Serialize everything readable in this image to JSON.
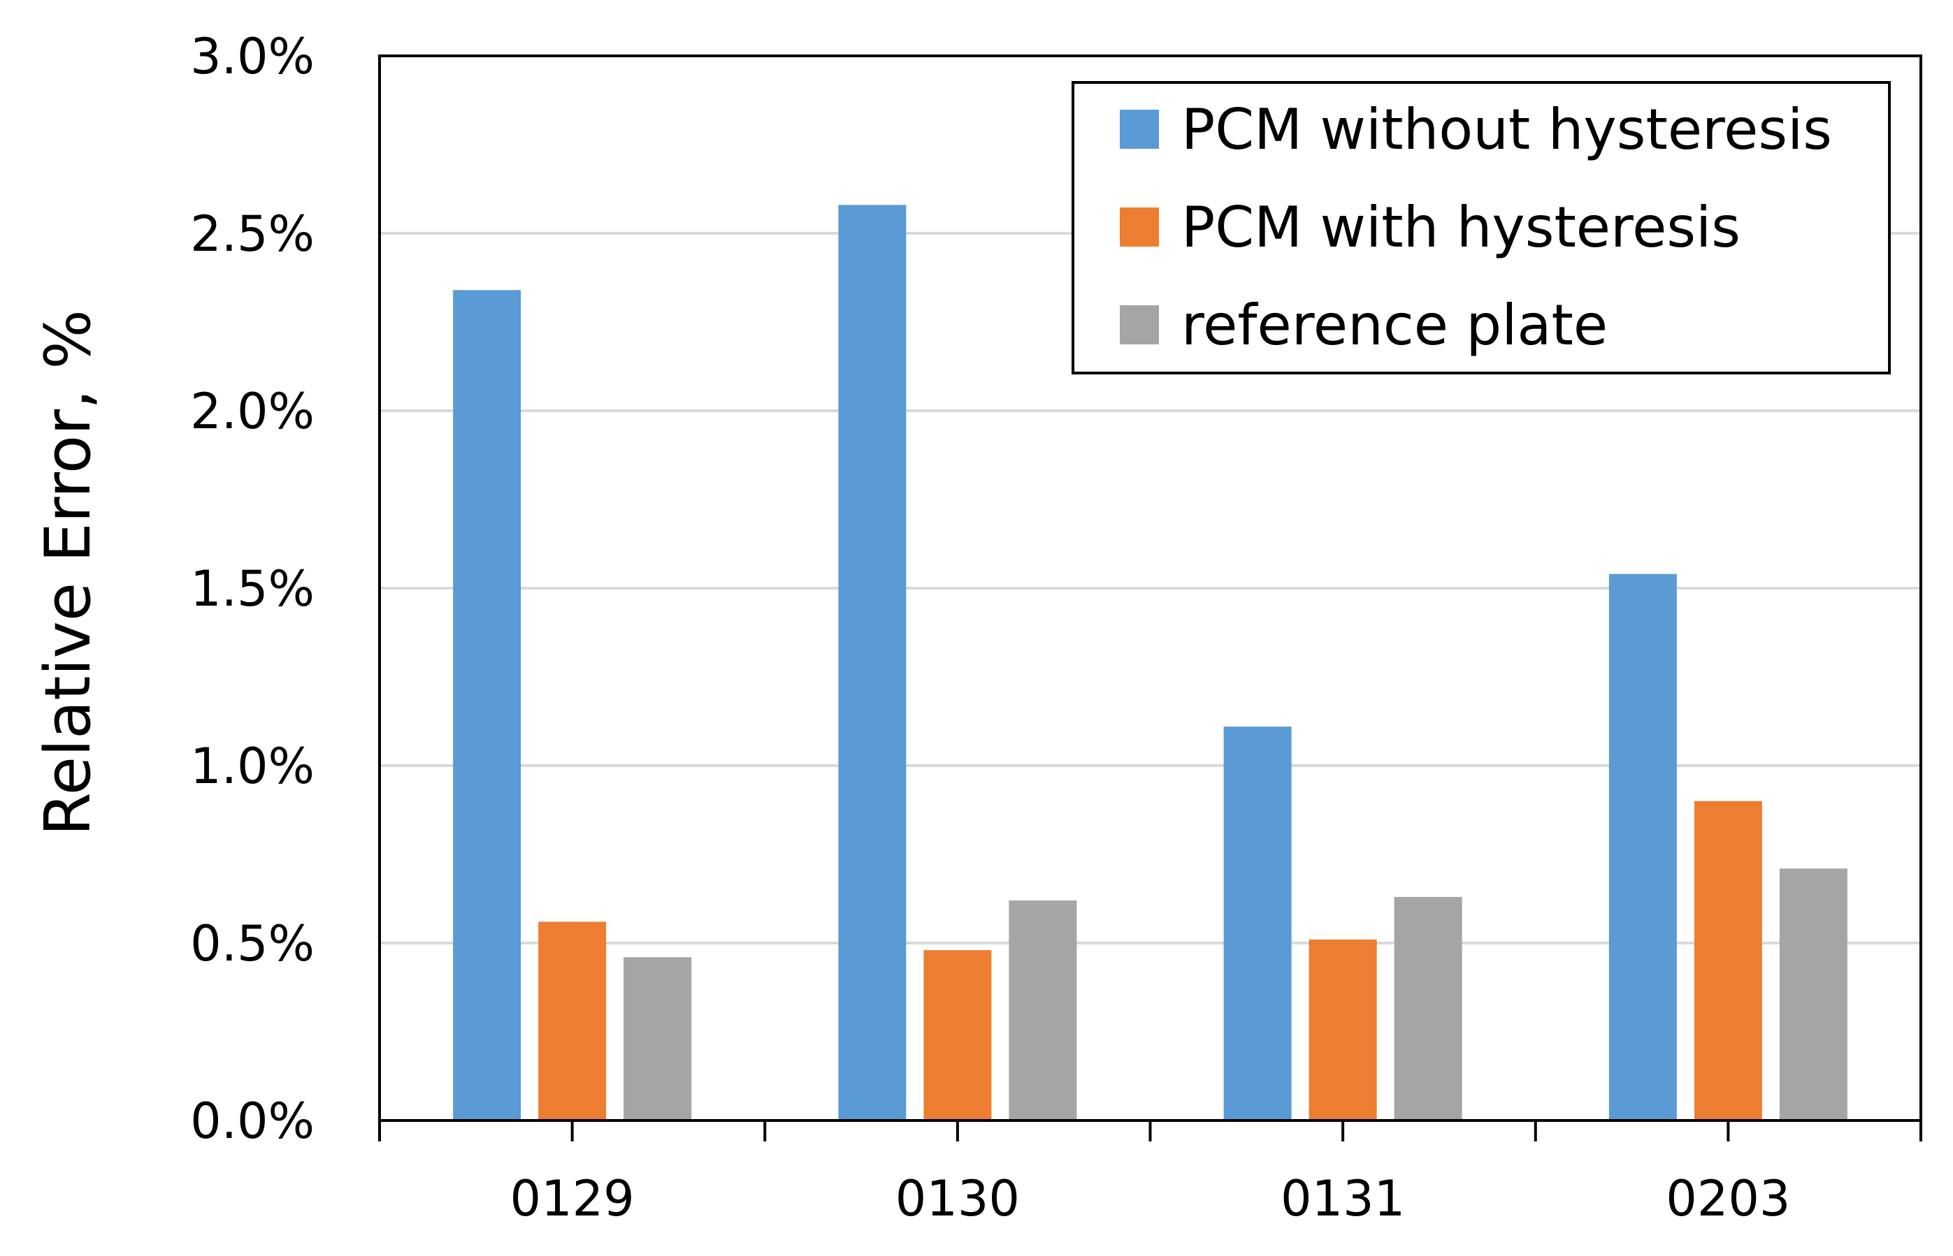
{
  "chart_data": {
    "type": "bar",
    "title": "",
    "xlabel": "",
    "ylabel": "Relative Error, %",
    "categories": [
      "0129",
      "0130",
      "0131",
      "0203"
    ],
    "series": [
      {
        "name": "PCM without hysteresis",
        "color": "#5b9bd5",
        "values": [
          2.34,
          2.58,
          1.11,
          1.54
        ]
      },
      {
        "name": "PCM with hysteresis",
        "color": "#ed7d31",
        "values": [
          0.56,
          0.48,
          0.51,
          0.9
        ]
      },
      {
        "name": "reference plate",
        "color": "#a5a5a5",
        "values": [
          0.46,
          0.62,
          0.63,
          0.71
        ]
      }
    ],
    "ylim": [
      0,
      3.0
    ],
    "yticks": [
      0,
      0.5,
      1.0,
      1.5,
      2.0,
      2.5,
      3.0
    ],
    "ytick_labels": [
      "0.0%",
      "0.5%",
      "1.0%",
      "1.5%",
      "2.0%",
      "2.5%",
      "3.0%"
    ],
    "grid": true,
    "legend_position": "top-right"
  }
}
